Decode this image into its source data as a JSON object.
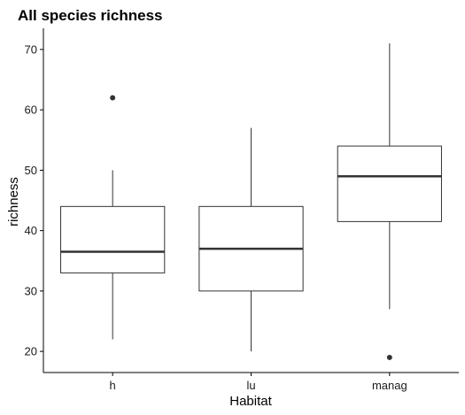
{
  "chart_data": {
    "type": "boxplot",
    "title": "All species richness",
    "xlabel": "Habitat",
    "ylabel": "richness",
    "ylim": [
      16.5,
      73.5
    ],
    "yticks": [
      20,
      30,
      40,
      50,
      60,
      70
    ],
    "grid": false,
    "categories": [
      "h",
      "lu",
      "manag"
    ],
    "boxes": [
      {
        "category": "h",
        "whisker_low": 22,
        "q1": 33,
        "median": 36.5,
        "q3": 44,
        "whisker_high": 50,
        "outliers": [
          62
        ]
      },
      {
        "category": "lu",
        "whisker_low": 20,
        "q1": 30,
        "median": 37,
        "q3": 44,
        "whisker_high": 57,
        "outliers": []
      },
      {
        "category": "manag",
        "whisker_low": 27,
        "q1": 41.5,
        "median": 49,
        "q3": 54,
        "whisker_high": 71,
        "outliers": [
          19
        ]
      }
    ],
    "colors": {
      "box_fill": "#ffffff",
      "line": "#333333",
      "axis": "#000000"
    }
  }
}
